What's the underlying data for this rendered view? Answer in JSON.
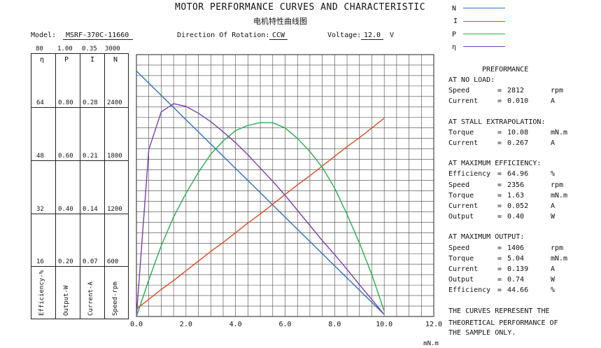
{
  "header": {
    "title": "MOTOR PERFORMANCE CURVES AND CHARACTERISTIC",
    "subtitle": "电机特性曲线图",
    "model_label": "Model:",
    "model_value": "MSRF-370C-11660",
    "direction_label": "Direction Of Rotation:",
    "direction_value": "CCW",
    "voltage_label": "Voltage:",
    "voltage_value": "12.0",
    "voltage_unit": "V"
  },
  "legend": [
    {
      "label": "N",
      "color": "#2e6fc4"
    },
    {
      "label": "I",
      "color": "#e04a1f"
    },
    {
      "label": "P",
      "color": "#24b04c"
    },
    {
      "label": "η",
      "color": "#7a3fb0"
    }
  ],
  "left_scale": {
    "max_row": [
      "80",
      "1.00",
      "0.35",
      "3000"
    ],
    "symbols": [
      "η",
      "P",
      "I",
      "N"
    ],
    "rows": [
      [
        "64",
        "0.80",
        "0.28",
        "2400"
      ],
      [
        "48",
        "0.60",
        "0.21",
        "1800"
      ],
      [
        "32",
        "0.40",
        "0.14",
        "1200"
      ],
      [
        "16",
        "0.20",
        "0.07",
        "600"
      ]
    ],
    "axis_names": [
      "Efficiency-%",
      "Output-W",
      "Current-A",
      "Speed-rpm"
    ]
  },
  "performance": {
    "heading": "PREFORMANCE",
    "no_load": {
      "title": "AT NO LOAD:",
      "rows": [
        {
          "label": "Speed",
          "eq": "=",
          "value": "2812",
          "unit": "rpm"
        },
        {
          "label": "Current",
          "eq": "=",
          "value": "0.010",
          "unit": "A"
        }
      ]
    },
    "stall": {
      "title": "AT STALL EXTRAPOLATION:",
      "rows": [
        {
          "label": "Torque",
          "eq": "=",
          "value": "10.08",
          "unit": "mN.m"
        },
        {
          "label": "Current",
          "eq": "=",
          "value": "0.267",
          "unit": "A"
        }
      ]
    },
    "max_eff": {
      "title": "AT MAXIMUM EFFICIENCY:",
      "rows": [
        {
          "label": "Efficiency",
          "eq": "=",
          "value": "64.96",
          "unit": "%"
        },
        {
          "label": "Speed",
          "eq": "=",
          "value": "2356",
          "unit": "rpm"
        },
        {
          "label": "Torque",
          "eq": "=",
          "value": "1.63",
          "unit": "mN.m"
        },
        {
          "label": "Current",
          "eq": "=",
          "value": "0.052",
          "unit": "A"
        },
        {
          "label": "Output",
          "eq": "=",
          "value": "0.40",
          "unit": "W"
        }
      ]
    },
    "max_out": {
      "title": "AT MAXIMUM OUTPUT:",
      "rows": [
        {
          "label": "Speed",
          "eq": "=",
          "value": "1406",
          "unit": "rpm"
        },
        {
          "label": "Torque",
          "eq": "=",
          "value": "5.04",
          "unit": "mN.m"
        },
        {
          "label": "Current",
          "eq": "=",
          "value": "0.139",
          "unit": "A"
        },
        {
          "label": "Output",
          "eq": "=",
          "value": "0.74",
          "unit": "W"
        },
        {
          "label": "Efficiency",
          "eq": "=",
          "value": "44.66",
          "unit": "%"
        }
      ]
    },
    "note": [
      "THE CURVES REPRESENT THE",
      "THEORETICAL PERFORMANCE OF",
      "THE SAMPLE ONLY."
    ]
  },
  "chart_data": {
    "type": "line",
    "title": "MOTOR PERFORMANCE CURVES AND CHARACTERISTIC",
    "xlabel": "mN.m",
    "xlim": [
      0,
      12
    ],
    "x_ticks": [
      "0.0",
      "2.0",
      "4.0",
      "6.0",
      "8.0",
      "10.0",
      "12.0"
    ],
    "grid": true,
    "x": [
      0,
      0.5,
      1.0,
      1.5,
      2.0,
      2.5,
      3.0,
      3.5,
      4.0,
      4.5,
      5.0,
      5.5,
      6.0,
      6.5,
      7.0,
      7.5,
      8.0,
      8.5,
      9.0,
      9.5,
      10.0
    ],
    "series": [
      {
        "name": "N",
        "axis": "Speed-rpm",
        "ylim": [
          0,
          3000
        ],
        "color": "#2e6fc4",
        "values": [
          2812,
          2673,
          2533,
          2394,
          2254,
          2115,
          1975,
          1836,
          1696,
          1557,
          1417,
          1278,
          1138,
          999,
          859,
          720,
          581,
          441,
          302,
          162,
          23
        ]
      },
      {
        "name": "I",
        "axis": "Current-A",
        "ylim": [
          0,
          0.35
        ],
        "color": "#e04a1f",
        "values": [
          0.01,
          0.023,
          0.036,
          0.048,
          0.061,
          0.074,
          0.087,
          0.099,
          0.112,
          0.125,
          0.137,
          0.15,
          0.163,
          0.176,
          0.188,
          0.201,
          0.214,
          0.227,
          0.239,
          0.252,
          0.265
        ]
      },
      {
        "name": "P",
        "axis": "Output-W",
        "ylim": [
          0,
          1.0
        ],
        "color": "#24b04c",
        "values": [
          0.0,
          0.14,
          0.27,
          0.38,
          0.47,
          0.55,
          0.62,
          0.67,
          0.71,
          0.73,
          0.74,
          0.74,
          0.72,
          0.68,
          0.63,
          0.57,
          0.49,
          0.39,
          0.28,
          0.16,
          0.02
        ]
      },
      {
        "name": "η",
        "axis": "Efficiency-%",
        "ylim": [
          0,
          80
        ],
        "color": "#7a3fb0",
        "values": [
          0,
          51.0,
          62.5,
          65.0,
          64.2,
          62.1,
          59.5,
          56.4,
          53.1,
          49.4,
          45.3,
          41.3,
          37.0,
          32.4,
          27.8,
          23.2,
          18.9,
          14.4,
          9.7,
          5.2,
          0.6
        ]
      }
    ]
  }
}
